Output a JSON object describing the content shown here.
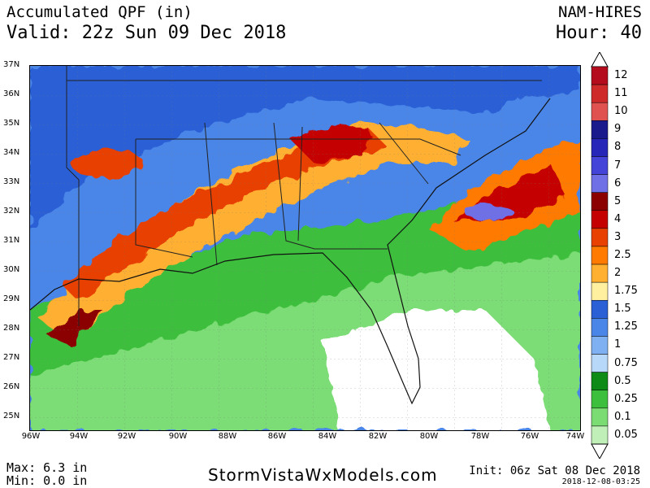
{
  "header": {
    "title": "Accumulated QPF (in)",
    "valid": "Valid: 22z Sun 09 Dec 2018",
    "model": "NAM-HIRES",
    "hour": "Hour: 40"
  },
  "footer": {
    "max": "Max: 6.3 in",
    "min": "Min: 0.0 in",
    "site": "StormVistaWxModels.com",
    "init": "Init: 06z Sat 08 Dec 2018",
    "stamp": "2018-12-08-03:25"
  },
  "map": {
    "lat_labels": [
      "37N",
      "36N",
      "35N",
      "34N",
      "33N",
      "32N",
      "31N",
      "30N",
      "29N",
      "28N",
      "27N",
      "26N",
      "25N"
    ],
    "lon_labels": [
      "96W",
      "94W",
      "92W",
      "90W",
      "88W",
      "86W",
      "84W",
      "82W",
      "80W",
      "78W",
      "76W",
      "74W"
    ]
  },
  "legend": {
    "labels": [
      "12",
      "11",
      "10",
      "9",
      "8",
      "7",
      "6",
      "5",
      "4",
      "3",
      "2.5",
      "2",
      "1.75",
      "1.5",
      "1.25",
      "1",
      "0.75",
      "0.5",
      "0.25",
      "0.1",
      "0.05"
    ],
    "colors": [
      "#b40c1c",
      "#cf2a2a",
      "#e0524f",
      "#1a1a8c",
      "#2626b8",
      "#4444d8",
      "#7070e6",
      "#8b0000",
      "#c40000",
      "#e84000",
      "#ff7a00",
      "#ffb030",
      "#fff0a0",
      "#2a5fd6",
      "#4a86e8",
      "#7fb0f2",
      "#b8d8fa",
      "#0e8a16",
      "#3cbf3c",
      "#7cdc74",
      "#c0f0b8"
    ]
  }
}
